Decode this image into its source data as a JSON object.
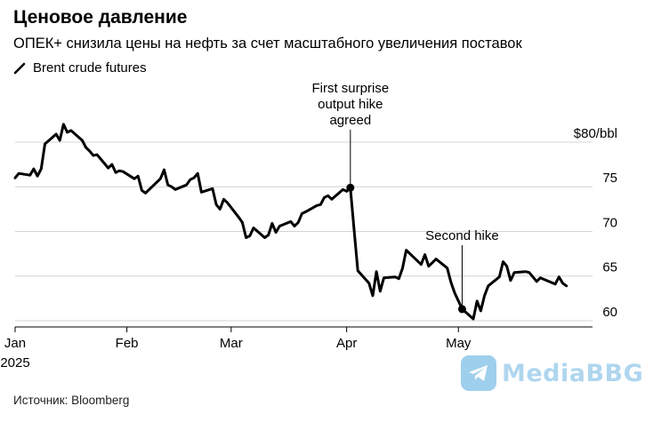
{
  "header": {
    "title": "Ценовое давление",
    "subtitle": "ОПЕК+ снизила цены на нефть за счет масштабного увеличения поставок"
  },
  "legend": {
    "label": "Brent crude futures",
    "color": "#000000"
  },
  "source": "Источник: Bloomberg",
  "watermark": {
    "text": "MediaBBG",
    "icon": "telegram-plane-icon",
    "color": "#4fa9dd"
  },
  "chart_data": {
    "type": "line",
    "title": "Ценовое давление",
    "subtitle": "ОПЕК+ снизила цены на нефть за счет масштабного увеличения поставок",
    "xlabel": "",
    "ylabel": "",
    "unit_label": "$80/bbl",
    "y_ticks": [
      60,
      65,
      70,
      75,
      80
    ],
    "y_tick_labels": [
      "60",
      "65",
      "70",
      "75",
      "$80/bbl"
    ],
    "ylim": [
      59.3,
      80
    ],
    "xlim": [
      "2025-01-02",
      "2025-06-06"
    ],
    "x_ticks": [
      {
        "date": "2025-01-02",
        "label": "Jan",
        "sublabel": "2025"
      },
      {
        "date": "2025-02-01",
        "label": "Feb",
        "sublabel": ""
      },
      {
        "date": "2025-03-01",
        "label": "Mar",
        "sublabel": ""
      },
      {
        "date": "2025-04-01",
        "label": "Apr",
        "sublabel": ""
      },
      {
        "date": "2025-05-01",
        "label": "May",
        "sublabel": ""
      }
    ],
    "grid": true,
    "legend_position": "top-left",
    "series": [
      {
        "name": "Brent crude futures",
        "color": "#000000",
        "points": [
          [
            "2025-01-02",
            76.0
          ],
          [
            "2025-01-03",
            76.5
          ],
          [
            "2025-01-06",
            76.3
          ],
          [
            "2025-01-07",
            77.0
          ],
          [
            "2025-01-08",
            76.2
          ],
          [
            "2025-01-09",
            77.0
          ],
          [
            "2025-01-10",
            79.8
          ],
          [
            "2025-01-13",
            80.9
          ],
          [
            "2025-01-14",
            80.2
          ],
          [
            "2025-01-15",
            82.0
          ],
          [
            "2025-01-16",
            81.1
          ],
          [
            "2025-01-17",
            81.3
          ],
          [
            "2025-01-20",
            80.2
          ],
          [
            "2025-01-21",
            79.4
          ],
          [
            "2025-01-22",
            79.0
          ],
          [
            "2025-01-23",
            78.5
          ],
          [
            "2025-01-24",
            78.6
          ],
          [
            "2025-01-27",
            77.1
          ],
          [
            "2025-01-28",
            77.5
          ],
          [
            "2025-01-29",
            76.6
          ],
          [
            "2025-01-30",
            76.8
          ],
          [
            "2025-01-31",
            76.7
          ],
          [
            "2025-02-03",
            75.9
          ],
          [
            "2025-02-04",
            76.2
          ],
          [
            "2025-02-05",
            74.6
          ],
          [
            "2025-02-06",
            74.3
          ],
          [
            "2025-02-07",
            74.7
          ],
          [
            "2025-02-10",
            75.9
          ],
          [
            "2025-02-11",
            76.9
          ],
          [
            "2025-02-12",
            75.2
          ],
          [
            "2025-02-13",
            75.0
          ],
          [
            "2025-02-14",
            74.7
          ],
          [
            "2025-02-17",
            75.2
          ],
          [
            "2025-02-18",
            75.8
          ],
          [
            "2025-02-19",
            76.0
          ],
          [
            "2025-02-20",
            76.5
          ],
          [
            "2025-02-21",
            74.4
          ],
          [
            "2025-02-24",
            74.8
          ],
          [
            "2025-02-25",
            73.0
          ],
          [
            "2025-02-26",
            72.5
          ],
          [
            "2025-02-27",
            73.6
          ],
          [
            "2025-02-28",
            73.2
          ],
          [
            "2025-03-03",
            71.6
          ],
          [
            "2025-03-04",
            71.0
          ],
          [
            "2025-03-05",
            69.3
          ],
          [
            "2025-03-06",
            69.5
          ],
          [
            "2025-03-07",
            70.4
          ],
          [
            "2025-03-10",
            69.3
          ],
          [
            "2025-03-11",
            69.6
          ],
          [
            "2025-03-12",
            70.9
          ],
          [
            "2025-03-13",
            69.9
          ],
          [
            "2025-03-14",
            70.6
          ],
          [
            "2025-03-17",
            71.1
          ],
          [
            "2025-03-18",
            70.6
          ],
          [
            "2025-03-19",
            71.0
          ],
          [
            "2025-03-20",
            72.0
          ],
          [
            "2025-03-21",
            72.2
          ],
          [
            "2025-03-24",
            72.9
          ],
          [
            "2025-03-25",
            73.0
          ],
          [
            "2025-03-26",
            73.8
          ],
          [
            "2025-03-27",
            74.0
          ],
          [
            "2025-03-28",
            73.6
          ],
          [
            "2025-03-31",
            74.7
          ],
          [
            "2025-04-01",
            74.5
          ],
          [
            "2025-04-02",
            74.9
          ],
          [
            "2025-04-03",
            70.2
          ],
          [
            "2025-04-04",
            65.6
          ],
          [
            "2025-04-07",
            64.2
          ],
          [
            "2025-04-08",
            62.8
          ],
          [
            "2025-04-09",
            65.5
          ],
          [
            "2025-04-10",
            63.3
          ],
          [
            "2025-04-11",
            64.8
          ],
          [
            "2025-04-14",
            64.9
          ],
          [
            "2025-04-15",
            64.7
          ],
          [
            "2025-04-16",
            65.9
          ],
          [
            "2025-04-17",
            67.9
          ],
          [
            "2025-04-21",
            66.3
          ],
          [
            "2025-04-22",
            67.4
          ],
          [
            "2025-04-23",
            66.1
          ],
          [
            "2025-04-24",
            66.5
          ],
          [
            "2025-04-25",
            66.9
          ],
          [
            "2025-04-28",
            65.9
          ],
          [
            "2025-04-29",
            64.3
          ],
          [
            "2025-04-30",
            63.1
          ],
          [
            "2025-05-02",
            61.3
          ],
          [
            "2025-05-05",
            60.2
          ],
          [
            "2025-05-06",
            62.2
          ],
          [
            "2025-05-07",
            61.1
          ],
          [
            "2025-05-08",
            62.8
          ],
          [
            "2025-05-09",
            63.9
          ],
          [
            "2025-05-12",
            64.9
          ],
          [
            "2025-05-13",
            66.6
          ],
          [
            "2025-05-14",
            66.1
          ],
          [
            "2025-05-15",
            64.5
          ],
          [
            "2025-05-16",
            65.4
          ],
          [
            "2025-05-19",
            65.5
          ],
          [
            "2025-05-20",
            65.4
          ],
          [
            "2025-05-21",
            64.9
          ],
          [
            "2025-05-22",
            64.4
          ],
          [
            "2025-05-23",
            64.8
          ],
          [
            "2025-05-27",
            64.1
          ],
          [
            "2025-05-28",
            64.9
          ],
          [
            "2025-05-29",
            64.2
          ],
          [
            "2025-05-30",
            63.9
          ]
        ]
      }
    ],
    "annotations": [
      {
        "date": "2025-04-02",
        "value": 74.9,
        "text_lines": [
          "First surprise",
          "output hike",
          "agreed"
        ]
      },
      {
        "date": "2025-05-02",
        "value": 61.3,
        "text_lines": [
          "Second hike"
        ]
      }
    ]
  }
}
